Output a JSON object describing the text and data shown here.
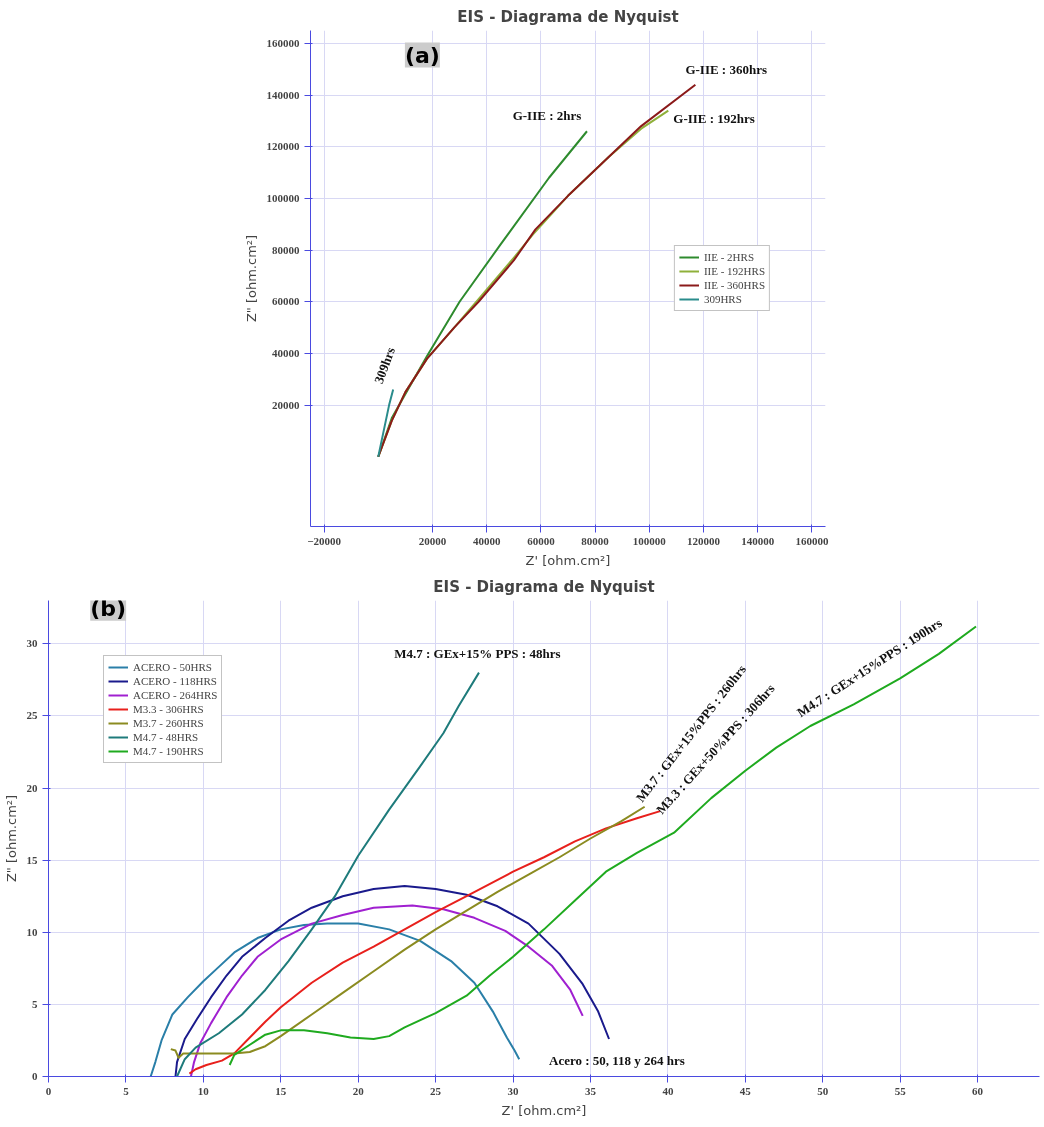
{
  "chart_data": [
    {
      "type": "line",
      "title": "EIS - Diagrama de Nyquist",
      "xlabel": "Z' [ohm.cm²]",
      "ylabel": "Z\" [ohm.cm²]",
      "xlim": [
        -25000,
        165000
      ],
      "ylim": [
        -27000,
        165000
      ],
      "xticks": [
        -20000,
        20000,
        40000,
        60000,
        80000,
        100000,
        120000,
        140000,
        160000
      ],
      "yticks": [
        20000,
        40000,
        60000,
        80000,
        100000,
        120000,
        140000,
        160000
      ],
      "grid": true,
      "legend": "right",
      "series": [
        {
          "name": "IIE - 2HRS",
          "color": "#2e8b2e",
          "x": [
            0,
            5000,
            12000,
            18000,
            30000,
            45000,
            63000,
            77000
          ],
          "values": [
            0,
            15000,
            28000,
            39000,
            60000,
            82000,
            108000,
            126000
          ]
        },
        {
          "name": "IIE - 192HRS",
          "color": "#8fb03a",
          "x": [
            0,
            5000,
            10000,
            18000,
            28000,
            37000,
            50000,
            57000,
            70000,
            85000,
            97000,
            107000
          ],
          "values": [
            0,
            14000,
            25000,
            38000,
            50000,
            61000,
            77000,
            86000,
            101000,
            116000,
            127000,
            134000
          ]
        },
        {
          "name": "IIE - 360HRS",
          "color": "#8b1a1a",
          "x": [
            0,
            5000,
            10000,
            18000,
            28000,
            37000,
            50000,
            58000,
            70000,
            85000,
            97000,
            117000
          ],
          "values": [
            0,
            14000,
            25000,
            38000,
            50000,
            60000,
            76000,
            88000,
            101000,
            116000,
            128000,
            144000
          ]
        },
        {
          "name": "309HRS",
          "color": "#2a8c8c",
          "x": [
            0,
            2000,
            4000,
            5500
          ],
          "values": [
            0,
            10000,
            20000,
            26000
          ]
        }
      ],
      "annotations": [
        "(a)",
        {
          "text": "G-IIE : 2hrs",
          "x": 77000,
          "y": 126000
        },
        {
          "text": "G-IIE : 360hrs",
          "x": 117000,
          "y": 144000
        },
        {
          "text": "G-IIE : 192hrs",
          "x": 107000,
          "y": 134000
        },
        {
          "text": "309hrs",
          "x": 5500,
          "y": 26000
        }
      ]
    },
    {
      "type": "line",
      "title": "EIS - Diagrama de Nyquist",
      "xlabel": "Z' [ohm.cm²]",
      "ylabel": "Z\" [ohm.cm²]",
      "xlim": [
        0,
        64
      ],
      "ylim": [
        0,
        33
      ],
      "xticks": [
        0,
        5,
        10,
        15,
        20,
        25,
        30,
        35,
        40,
        45,
        50,
        55,
        60
      ],
      "yticks": [
        0,
        5,
        10,
        15,
        20,
        25,
        30
      ],
      "grid": true,
      "legend": "top left",
      "series": [
        {
          "name": "ACERO - 50HRS",
          "color": "#2a7fa8",
          "x": [
            6.6,
            6.9,
            7.3,
            8,
            9,
            10,
            11,
            12,
            13.5,
            15,
            16.5,
            18,
            20,
            22,
            24,
            26,
            27.5,
            28.7,
            29.6,
            30.1,
            30.4
          ],
          "values": [
            0,
            1,
            2.5,
            4.3,
            5.5,
            6.6,
            7.6,
            8.6,
            9.6,
            10.2,
            10.5,
            10.6,
            10.6,
            10.2,
            9.4,
            8,
            6.5,
            4.5,
            2.7,
            1.8,
            1.2
          ]
        },
        {
          "name": "ACERO - 118HRS",
          "color": "#1a1a8c",
          "x": [
            8.2,
            8.3,
            8.8,
            9.6,
            10.5,
            11.5,
            12.5,
            14,
            15.5,
            17,
            19,
            21,
            23,
            25,
            27,
            29,
            31,
            33,
            34.5,
            35.5,
            36.2
          ],
          "values": [
            0,
            1,
            2.6,
            4,
            5.5,
            7,
            8.3,
            9.6,
            10.8,
            11.7,
            12.5,
            13,
            13.2,
            13,
            12.6,
            11.8,
            10.6,
            8.5,
            6.4,
            4.5,
            2.6
          ]
        },
        {
          "name": "ACERO - 264HRS",
          "color": "#a020d0",
          "x": [
            9.2,
            9.4,
            9.8,
            10.5,
            11.5,
            12.5,
            13.5,
            15,
            17,
            19,
            21,
            23.5,
            25.5,
            27.5,
            29.5,
            31,
            32.5,
            33.7,
            34.5
          ],
          "values": [
            0,
            1,
            2.3,
            3.7,
            5.5,
            7,
            8.3,
            9.5,
            10.6,
            11.2,
            11.7,
            11.85,
            11.6,
            11,
            10.1,
            9,
            7.7,
            6,
            4.2
          ]
        },
        {
          "name": "M3.3 - 306HRS",
          "color": "#e8201c",
          "x": [
            9.1,
            9.5,
            10.2,
            11.2,
            12,
            13,
            14,
            15,
            17,
            19,
            21,
            23,
            25,
            27,
            30,
            32,
            34,
            36,
            38,
            39.5
          ],
          "values": [
            0.2,
            0.5,
            0.8,
            1.1,
            1.6,
            2.7,
            3.8,
            4.8,
            6.5,
            7.9,
            9,
            10.2,
            11.4,
            12.5,
            14.2,
            15.2,
            16.3,
            17.2,
            17.9,
            18.4
          ]
        },
        {
          "name": "M3.7 - 260HRS",
          "color": "#8b8b20",
          "x": [
            7.9,
            8.2,
            8.4,
            8.7,
            10,
            12,
            13,
            14,
            15,
            17,
            19,
            21,
            23,
            25,
            27,
            29,
            31,
            33,
            35,
            37,
            38.5
          ],
          "values": [
            1.9,
            1.8,
            1.3,
            1.6,
            1.6,
            1.6,
            1.7,
            2.1,
            2.8,
            4.3,
            5.8,
            7.3,
            8.8,
            10.2,
            11.5,
            12.8,
            14,
            15.2,
            16.5,
            17.7,
            18.7
          ]
        },
        {
          "name": "M4.7 - 48HRS",
          "color": "#1e7b7b",
          "x": [
            8.3,
            8.8,
            9.5,
            11,
            12.5,
            14,
            15.5,
            17,
            18.5,
            20,
            22,
            24,
            25.5,
            26.5,
            27.8
          ],
          "values": [
            0,
            1.2,
            2,
            3,
            4.3,
            6,
            8,
            10.2,
            12.5,
            15.3,
            18.5,
            21.5,
            23.8,
            25.7,
            28
          ]
        },
        {
          "name": "M4.7 - 190HRS",
          "color": "#1faa1f",
          "x": [
            11.7,
            12,
            13,
            14,
            15,
            16.5,
            18,
            19.5,
            21,
            22,
            23,
            25,
            27,
            28.5,
            30,
            32,
            34,
            36,
            38,
            40.4,
            42.8,
            45,
            47,
            49.2,
            52,
            55,
            57.5,
            59.9
          ],
          "values": [
            0.8,
            1.5,
            2.2,
            2.9,
            3.2,
            3.2,
            3,
            2.7,
            2.6,
            2.8,
            3.4,
            4.4,
            5.6,
            7,
            8.3,
            10.2,
            12.2,
            14.2,
            15.5,
            16.9,
            19.3,
            21.2,
            22.8,
            24.3,
            25.8,
            27.6,
            29.3,
            31.2
          ]
        }
      ],
      "annotations": [
        "(b)",
        {
          "text": "M4.7 : GEx+15% PPS  : 48hrs",
          "x": 27.8,
          "y": 28
        },
        {
          "text": "M3.7 : GEx+15%PPS  : 260hrs",
          "x": 38.5,
          "y": 18.7
        },
        {
          "text": "M3.3 : GEx+50%PPS  : 306hrs",
          "x": 39.5,
          "y": 18.4
        },
        {
          "text": "M4.7 : GEx+15%PPS  : 190hrs",
          "x": 49.2,
          "y": 24.3
        },
        {
          "text": "Acero : 50, 118 y 264 hrs",
          "x": 36.2,
          "y": 2.6
        }
      ]
    }
  ]
}
